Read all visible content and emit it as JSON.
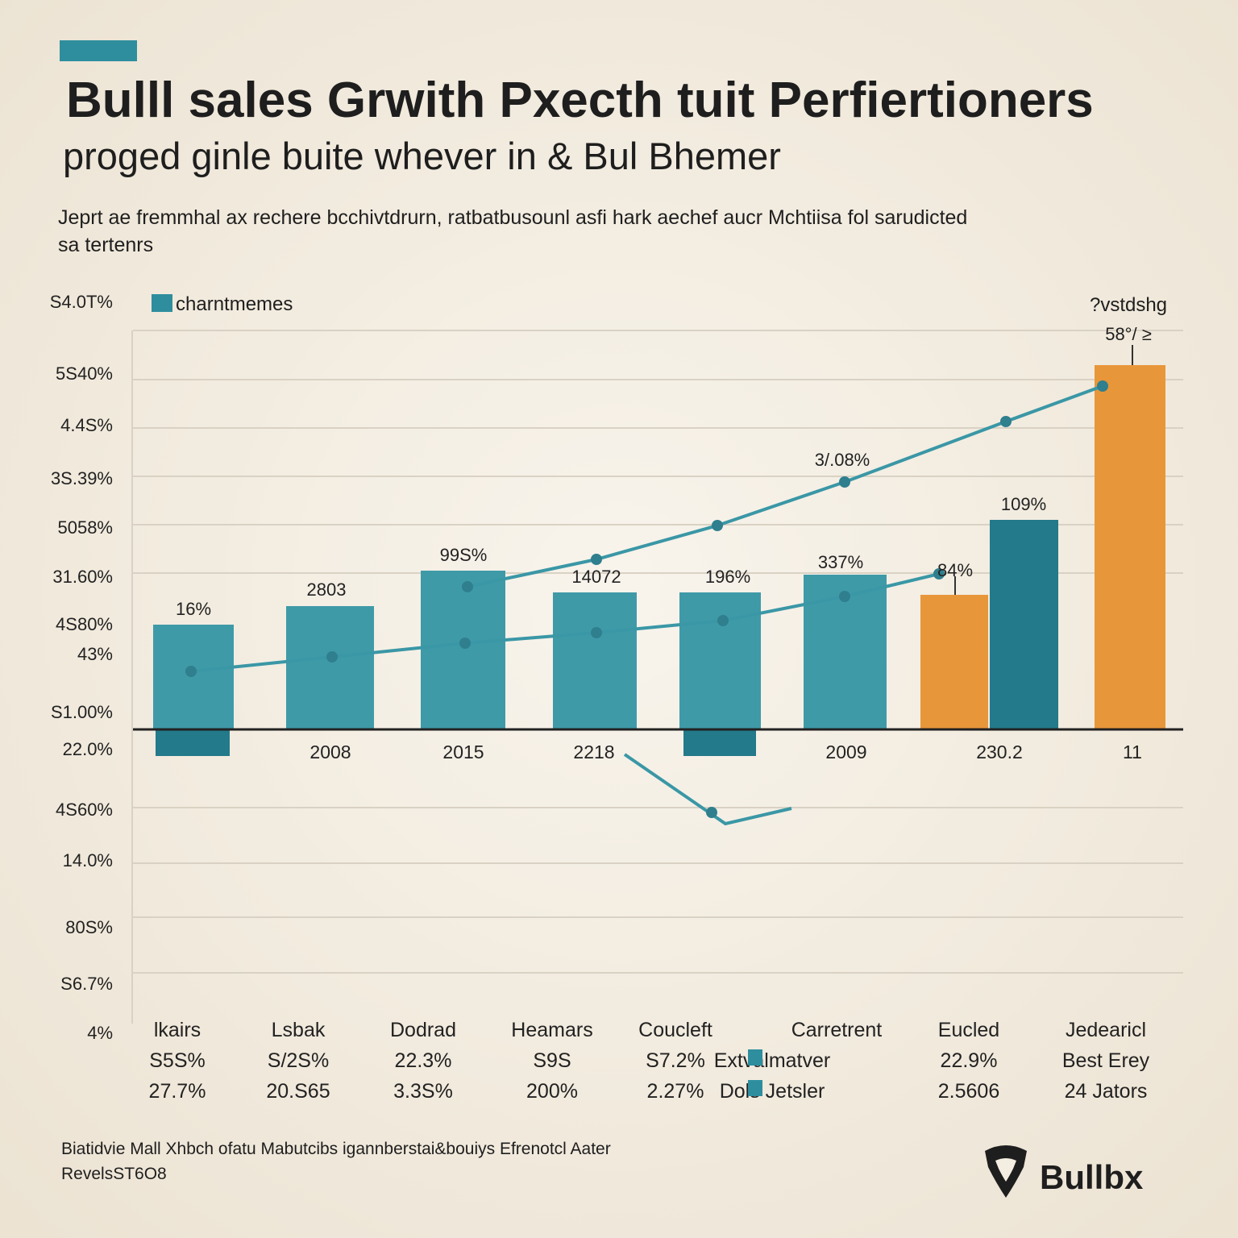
{
  "header": {
    "title": "Bulll sales Grwith Pxecth tuit Perfiertioners",
    "subtitle": "proged ginle buite whever  in & Bul Bhemer",
    "description": [
      "Jeprt ae fremmhal ax rechere bcchivtdrurn, ratbatbusounl asfi hark aechef aucr Mchtiisa fol sarudicted",
      "sa tertenrs"
    ]
  },
  "legend": "charntmemes",
  "y_labels": [
    "S4.0T%",
    "5S40%",
    "4.4S%",
    "3S.39%",
    "5058%",
    "31.60%",
    "4S80%",
    "43%",
    "S1.00%",
    "22.0%",
    "4S60%",
    "14.0%",
    "80S%",
    "S6.7%",
    "4%"
  ],
  "bar_labels": [
    "16%",
    "2803",
    "99S%",
    "14072",
    "196%",
    "337%",
    "84%",
    "109%",
    "3/.08%"
  ],
  "corner_note": [
    "?vstdshg",
    "58°/ ≥"
  ],
  "x_labels": [
    "2008",
    "2015",
    "2218",
    "2009",
    "230.2",
    "11"
  ],
  "table": {
    "columns": [
      [
        "lkairs",
        "S5S%",
        "27.7%"
      ],
      [
        "Lsbak",
        "S/2S%",
        "20.S65"
      ],
      [
        "Dodrad",
        "22.3%",
        "3.3S%"
      ],
      [
        "Heamars",
        "S9S",
        "200%"
      ],
      [
        "Coucleft",
        "S7.2%",
        "2.27%"
      ],
      [
        "Carretrent",
        "Extvalmatver",
        "Dols Jetsler"
      ],
      [
        "Eucled",
        "22.9%",
        "2.5606"
      ],
      [
        "Jedearicl",
        "Best Erey",
        "24 Jators"
      ]
    ]
  },
  "footer": {
    "note": [
      "Biatidvie Mall Xhbch ofatu Mabutcibs igannberstai&bouiys Efrenotcl Aater",
      "RevelsST6O8"
    ],
    "brand": "Bullbx"
  }
}
